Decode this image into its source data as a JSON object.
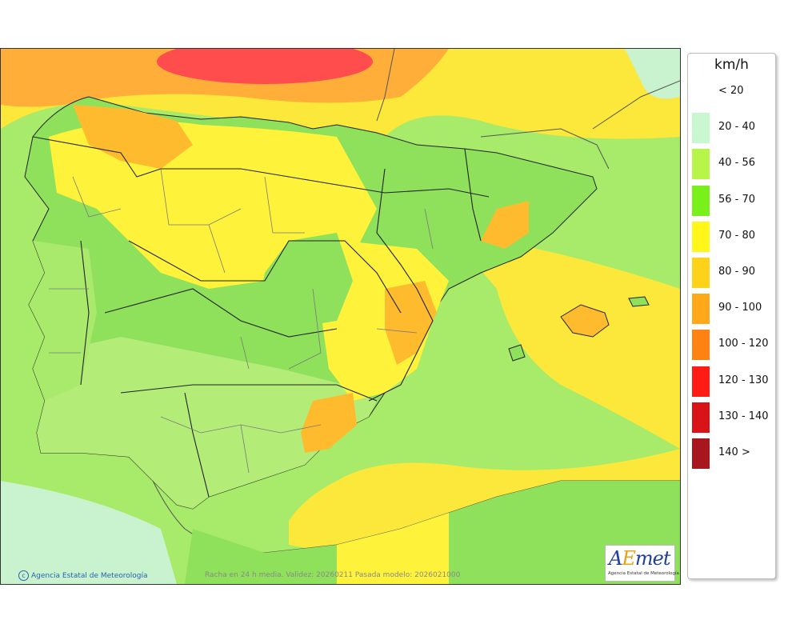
{
  "legend": {
    "unit": "km/h",
    "classes": [
      {
        "label": "< 20",
        "color": "#ffffff"
      },
      {
        "label": "20 - 40",
        "color": "#c9f7d0"
      },
      {
        "label": "40 - 56",
        "color": "#b7f54a"
      },
      {
        "label": "56 - 70",
        "color": "#7af01a"
      },
      {
        "label": "70 - 80",
        "color": "#fff71a"
      },
      {
        "label": "80 - 90",
        "color": "#ffd21a"
      },
      {
        "label": "90 - 100",
        "color": "#ffa91a"
      },
      {
        "label": "100 - 120",
        "color": "#ff8212"
      },
      {
        "label": "120 - 130",
        "color": "#ff1c14"
      },
      {
        "label": "130 - 140",
        "color": "#d81418"
      },
      {
        "label": "140 >",
        "color": "#a8161e"
      }
    ]
  },
  "map": {
    "credit": "Agencia Estatal de Meteorología",
    "credit_symbol": "c",
    "caption": "Racha en 24 h media. Validez: 20260211 Pasada modelo: 2026021000",
    "logo": {
      "mark_main": "A",
      "mark_accent": "E",
      "mark_rest": "met",
      "subtitle": "Agencia Estatal de Meteorología"
    },
    "colors": {
      "sea_light": "#c9f2c9",
      "land_green": "#8fe05a",
      "land_light": "#b4ec78",
      "yellow": "#fff23a",
      "orange": "#ffbb2e",
      "red": "#ff4a4a"
    }
  }
}
